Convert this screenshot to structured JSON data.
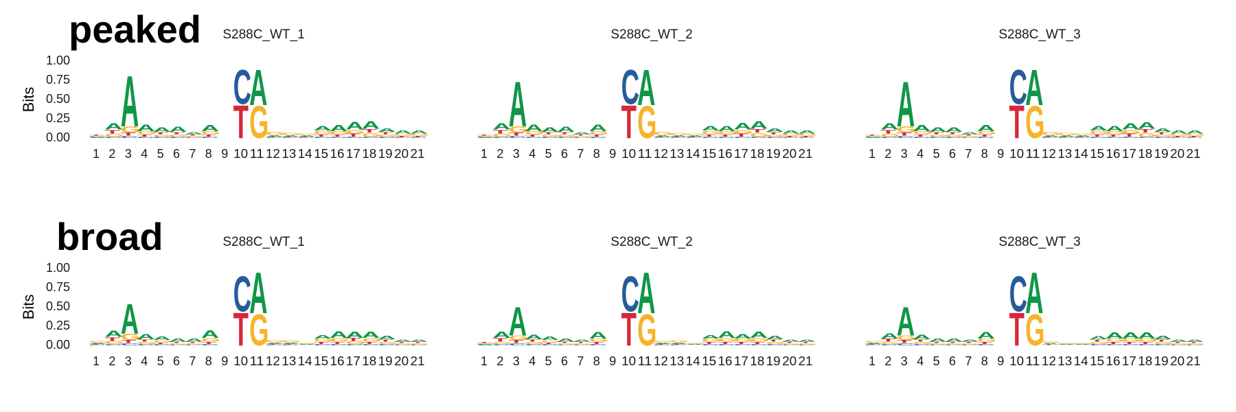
{
  "chart_data": {
    "type": "sequence-logo",
    "letters": [
      "A",
      "C",
      "G",
      "T"
    ],
    "letter_colors": {
      "A": "#109648",
      "C": "#255C99",
      "G": "#F7B32B",
      "T": "#D62839"
    },
    "ylabel": "Bits",
    "ylim": [
      0,
      1
    ],
    "yticks": [
      "0.00",
      "0.25",
      "0.50",
      "0.75",
      "1.00"
    ],
    "positions": [
      "1",
      "2",
      "3",
      "4",
      "5",
      "6",
      "7",
      "8",
      "9",
      "10",
      "11",
      "12",
      "13",
      "14",
      "15",
      "16",
      "17",
      "18",
      "19",
      "20",
      "21"
    ],
    "rows": [
      {
        "label": "peaked",
        "panels": [
          {
            "title": "S288C_WT_1",
            "heights": [
              {
                "A": 0.01,
                "C": 0.01,
                "G": 0.01,
                "T": 0.01
              },
              {
                "A": 0.08,
                "C": 0.02,
                "G": 0.04,
                "T": 0.05
              },
              {
                "A": 0.68,
                "C": 0.03,
                "G": 0.08,
                "T": 0.04
              },
              {
                "A": 0.09,
                "C": 0.02,
                "G": 0.04,
                "T": 0.03
              },
              {
                "A": 0.06,
                "C": 0.02,
                "G": 0.03,
                "T": 0.03
              },
              {
                "A": 0.07,
                "C": 0.02,
                "G": 0.03,
                "T": 0.03
              },
              {
                "A": 0.03,
                "C": 0.01,
                "G": 0.02,
                "T": 0.02
              },
              {
                "A": 0.08,
                "C": 0.02,
                "G": 0.04,
                "T": 0.03
              },
              {
                "A": 0.0,
                "C": 0.0,
                "G": 0.0,
                "T": 0.0
              },
              {
                "A": 0.0,
                "C": 0.46,
                "G": 0.0,
                "T": 0.44
              },
              {
                "A": 0.48,
                "C": 0.0,
                "G": 0.43,
                "T": 0.0
              },
              {
                "A": 0.02,
                "C": 0.01,
                "G": 0.04,
                "T": 0.01
              },
              {
                "A": 0.02,
                "C": 0.01,
                "G": 0.03,
                "T": 0.01
              },
              {
                "A": 0.02,
                "C": 0.01,
                "G": 0.02,
                "T": 0.01
              },
              {
                "A": 0.06,
                "C": 0.02,
                "G": 0.05,
                "T": 0.03
              },
              {
                "A": 0.08,
                "C": 0.02,
                "G": 0.04,
                "T": 0.03
              },
              {
                "A": 0.1,
                "C": 0.02,
                "G": 0.05,
                "T": 0.04
              },
              {
                "A": 0.1,
                "C": 0.02,
                "G": 0.05,
                "T": 0.05
              },
              {
                "A": 0.05,
                "C": 0.02,
                "G": 0.03,
                "T": 0.03
              },
              {
                "A": 0.04,
                "C": 0.01,
                "G": 0.03,
                "T": 0.02
              },
              {
                "A": 0.04,
                "C": 0.01,
                "G": 0.03,
                "T": 0.02
              }
            ]
          },
          {
            "title": "S288C_WT_2",
            "heights": [
              {
                "A": 0.01,
                "C": 0.01,
                "G": 0.01,
                "T": 0.01
              },
              {
                "A": 0.08,
                "C": 0.02,
                "G": 0.04,
                "T": 0.05
              },
              {
                "A": 0.6,
                "C": 0.03,
                "G": 0.08,
                "T": 0.04
              },
              {
                "A": 0.09,
                "C": 0.02,
                "G": 0.04,
                "T": 0.03
              },
              {
                "A": 0.06,
                "C": 0.02,
                "G": 0.03,
                "T": 0.03
              },
              {
                "A": 0.07,
                "C": 0.02,
                "G": 0.03,
                "T": 0.03
              },
              {
                "A": 0.03,
                "C": 0.01,
                "G": 0.02,
                "T": 0.02
              },
              {
                "A": 0.09,
                "C": 0.02,
                "G": 0.04,
                "T": 0.03
              },
              {
                "A": 0.0,
                "C": 0.0,
                "G": 0.0,
                "T": 0.0
              },
              {
                "A": 0.0,
                "C": 0.46,
                "G": 0.0,
                "T": 0.44
              },
              {
                "A": 0.48,
                "C": 0.0,
                "G": 0.43,
                "T": 0.0
              },
              {
                "A": 0.02,
                "C": 0.01,
                "G": 0.04,
                "T": 0.01
              },
              {
                "A": 0.02,
                "C": 0.01,
                "G": 0.03,
                "T": 0.01
              },
              {
                "A": 0.02,
                "C": 0.01,
                "G": 0.02,
                "T": 0.01
              },
              {
                "A": 0.06,
                "C": 0.02,
                "G": 0.05,
                "T": 0.03
              },
              {
                "A": 0.07,
                "C": 0.02,
                "G": 0.04,
                "T": 0.03
              },
              {
                "A": 0.09,
                "C": 0.02,
                "G": 0.05,
                "T": 0.04
              },
              {
                "A": 0.1,
                "C": 0.02,
                "G": 0.05,
                "T": 0.05
              },
              {
                "A": 0.05,
                "C": 0.02,
                "G": 0.03,
                "T": 0.03
              },
              {
                "A": 0.04,
                "C": 0.01,
                "G": 0.03,
                "T": 0.02
              },
              {
                "A": 0.04,
                "C": 0.01,
                "G": 0.03,
                "T": 0.02
              }
            ]
          },
          {
            "title": "S288C_WT_3",
            "heights": [
              {
                "A": 0.01,
                "C": 0.01,
                "G": 0.01,
                "T": 0.01
              },
              {
                "A": 0.08,
                "C": 0.02,
                "G": 0.04,
                "T": 0.05
              },
              {
                "A": 0.6,
                "C": 0.03,
                "G": 0.08,
                "T": 0.04
              },
              {
                "A": 0.08,
                "C": 0.02,
                "G": 0.04,
                "T": 0.03
              },
              {
                "A": 0.06,
                "C": 0.02,
                "G": 0.03,
                "T": 0.03
              },
              {
                "A": 0.06,
                "C": 0.02,
                "G": 0.03,
                "T": 0.03
              },
              {
                "A": 0.03,
                "C": 0.01,
                "G": 0.02,
                "T": 0.02
              },
              {
                "A": 0.08,
                "C": 0.02,
                "G": 0.04,
                "T": 0.03
              },
              {
                "A": 0.0,
                "C": 0.0,
                "G": 0.0,
                "T": 0.0
              },
              {
                "A": 0.0,
                "C": 0.46,
                "G": 0.0,
                "T": 0.44
              },
              {
                "A": 0.48,
                "C": 0.0,
                "G": 0.43,
                "T": 0.0
              },
              {
                "A": 0.02,
                "C": 0.01,
                "G": 0.04,
                "T": 0.01
              },
              {
                "A": 0.02,
                "C": 0.01,
                "G": 0.03,
                "T": 0.01
              },
              {
                "A": 0.02,
                "C": 0.01,
                "G": 0.02,
                "T": 0.01
              },
              {
                "A": 0.06,
                "C": 0.02,
                "G": 0.05,
                "T": 0.03
              },
              {
                "A": 0.07,
                "C": 0.02,
                "G": 0.04,
                "T": 0.03
              },
              {
                "A": 0.08,
                "C": 0.02,
                "G": 0.05,
                "T": 0.04
              },
              {
                "A": 0.09,
                "C": 0.02,
                "G": 0.05,
                "T": 0.05
              },
              {
                "A": 0.05,
                "C": 0.02,
                "G": 0.03,
                "T": 0.03
              },
              {
                "A": 0.04,
                "C": 0.01,
                "G": 0.03,
                "T": 0.02
              },
              {
                "A": 0.04,
                "C": 0.01,
                "G": 0.03,
                "T": 0.02
              }
            ]
          }
        ]
      },
      {
        "label": "broad",
        "panels": [
          {
            "title": "S288C_WT_1",
            "heights": [
              {
                "A": 0.02,
                "C": 0.01,
                "G": 0.02,
                "T": 0.01
              },
              {
                "A": 0.08,
                "C": 0.02,
                "G": 0.04,
                "T": 0.05
              },
              {
                "A": 0.4,
                "C": 0.03,
                "G": 0.08,
                "T": 0.04
              },
              {
                "A": 0.07,
                "C": 0.02,
                "G": 0.03,
                "T": 0.03
              },
              {
                "A": 0.05,
                "C": 0.02,
                "G": 0.03,
                "T": 0.02
              },
              {
                "A": 0.04,
                "C": 0.01,
                "G": 0.02,
                "T": 0.02
              },
              {
                "A": 0.04,
                "C": 0.01,
                "G": 0.02,
                "T": 0.02
              },
              {
                "A": 0.1,
                "C": 0.02,
                "G": 0.05,
                "T": 0.03
              },
              {
                "A": 0.0,
                "C": 0.0,
                "G": 0.0,
                "T": 0.0
              },
              {
                "A": 0.0,
                "C": 0.47,
                "G": 0.0,
                "T": 0.44
              },
              {
                "A": 0.55,
                "C": 0.0,
                "G": 0.42,
                "T": 0.0
              },
              {
                "A": 0.02,
                "C": 0.01,
                "G": 0.03,
                "T": 0.01
              },
              {
                "A": 0.02,
                "C": 0.01,
                "G": 0.03,
                "T": 0.01
              },
              {
                "A": 0.01,
                "C": 0.005,
                "G": 0.01,
                "T": 0.005
              },
              {
                "A": 0.05,
                "C": 0.02,
                "G": 0.04,
                "T": 0.03
              },
              {
                "A": 0.09,
                "C": 0.02,
                "G": 0.05,
                "T": 0.03
              },
              {
                "A": 0.08,
                "C": 0.02,
                "G": 0.04,
                "T": 0.04
              },
              {
                "A": 0.08,
                "C": 0.02,
                "G": 0.05,
                "T": 0.03
              },
              {
                "A": 0.05,
                "C": 0.02,
                "G": 0.03,
                "T": 0.03
              },
              {
                "A": 0.03,
                "C": 0.01,
                "G": 0.02,
                "T": 0.02
              },
              {
                "A": 0.03,
                "C": 0.01,
                "G": 0.02,
                "T": 0.02
              }
            ]
          },
          {
            "title": "S288C_WT_2",
            "heights": [
              {
                "A": 0.01,
                "C": 0.01,
                "G": 0.01,
                "T": 0.01
              },
              {
                "A": 0.08,
                "C": 0.02,
                "G": 0.03,
                "T": 0.05
              },
              {
                "A": 0.38,
                "C": 0.03,
                "G": 0.06,
                "T": 0.04
              },
              {
                "A": 0.06,
                "C": 0.02,
                "G": 0.03,
                "T": 0.03
              },
              {
                "A": 0.05,
                "C": 0.02,
                "G": 0.03,
                "T": 0.02
              },
              {
                "A": 0.04,
                "C": 0.01,
                "G": 0.02,
                "T": 0.02
              },
              {
                "A": 0.03,
                "C": 0.01,
                "G": 0.02,
                "T": 0.02
              },
              {
                "A": 0.09,
                "C": 0.02,
                "G": 0.04,
                "T": 0.03
              },
              {
                "A": 0.0,
                "C": 0.0,
                "G": 0.0,
                "T": 0.0
              },
              {
                "A": 0.0,
                "C": 0.47,
                "G": 0.0,
                "T": 0.44
              },
              {
                "A": 0.55,
                "C": 0.0,
                "G": 0.42,
                "T": 0.0
              },
              {
                "A": 0.02,
                "C": 0.01,
                "G": 0.02,
                "T": 0.01
              },
              {
                "A": 0.02,
                "C": 0.01,
                "G": 0.03,
                "T": 0.01
              },
              {
                "A": 0.01,
                "C": 0.005,
                "G": 0.01,
                "T": 0.005
              },
              {
                "A": 0.05,
                "C": 0.02,
                "G": 0.04,
                "T": 0.03
              },
              {
                "A": 0.09,
                "C": 0.02,
                "G": 0.05,
                "T": 0.03
              },
              {
                "A": 0.06,
                "C": 0.02,
                "G": 0.04,
                "T": 0.03
              },
              {
                "A": 0.08,
                "C": 0.02,
                "G": 0.05,
                "T": 0.03
              },
              {
                "A": 0.05,
                "C": 0.02,
                "G": 0.03,
                "T": 0.03
              },
              {
                "A": 0.03,
                "C": 0.01,
                "G": 0.02,
                "T": 0.02
              },
              {
                "A": 0.03,
                "C": 0.01,
                "G": 0.02,
                "T": 0.02
              }
            ]
          },
          {
            "title": "S288C_WT_3",
            "heights": [
              {
                "A": 0.02,
                "C": 0.01,
                "G": 0.02,
                "T": 0.01
              },
              {
                "A": 0.07,
                "C": 0.02,
                "G": 0.03,
                "T": 0.04
              },
              {
                "A": 0.38,
                "C": 0.03,
                "G": 0.06,
                "T": 0.04
              },
              {
                "A": 0.06,
                "C": 0.02,
                "G": 0.03,
                "T": 0.03
              },
              {
                "A": 0.04,
                "C": 0.01,
                "G": 0.02,
                "T": 0.02
              },
              {
                "A": 0.04,
                "C": 0.01,
                "G": 0.02,
                "T": 0.02
              },
              {
                "A": 0.03,
                "C": 0.01,
                "G": 0.02,
                "T": 0.02
              },
              {
                "A": 0.09,
                "C": 0.02,
                "G": 0.04,
                "T": 0.03
              },
              {
                "A": 0.0,
                "C": 0.0,
                "G": 0.0,
                "T": 0.0
              },
              {
                "A": 0.0,
                "C": 0.47,
                "G": 0.0,
                "T": 0.44
              },
              {
                "A": 0.55,
                "C": 0.0,
                "G": 0.42,
                "T": 0.0
              },
              {
                "A": 0.02,
                "C": 0.005,
                "G": 0.02,
                "T": 0.01
              },
              {
                "A": 0.01,
                "C": 0.005,
                "G": 0.01,
                "T": 0.005
              },
              {
                "A": 0.01,
                "C": 0.005,
                "G": 0.01,
                "T": 0.005
              },
              {
                "A": 0.04,
                "C": 0.02,
                "G": 0.03,
                "T": 0.03
              },
              {
                "A": 0.08,
                "C": 0.02,
                "G": 0.04,
                "T": 0.03
              },
              {
                "A": 0.08,
                "C": 0.02,
                "G": 0.04,
                "T": 0.03
              },
              {
                "A": 0.08,
                "C": 0.02,
                "G": 0.04,
                "T": 0.03
              },
              {
                "A": 0.05,
                "C": 0.02,
                "G": 0.03,
                "T": 0.03
              },
              {
                "A": 0.03,
                "C": 0.01,
                "G": 0.02,
                "T": 0.02
              },
              {
                "A": 0.03,
                "C": 0.01,
                "G": 0.02,
                "T": 0.02
              }
            ]
          }
        ]
      }
    ]
  }
}
